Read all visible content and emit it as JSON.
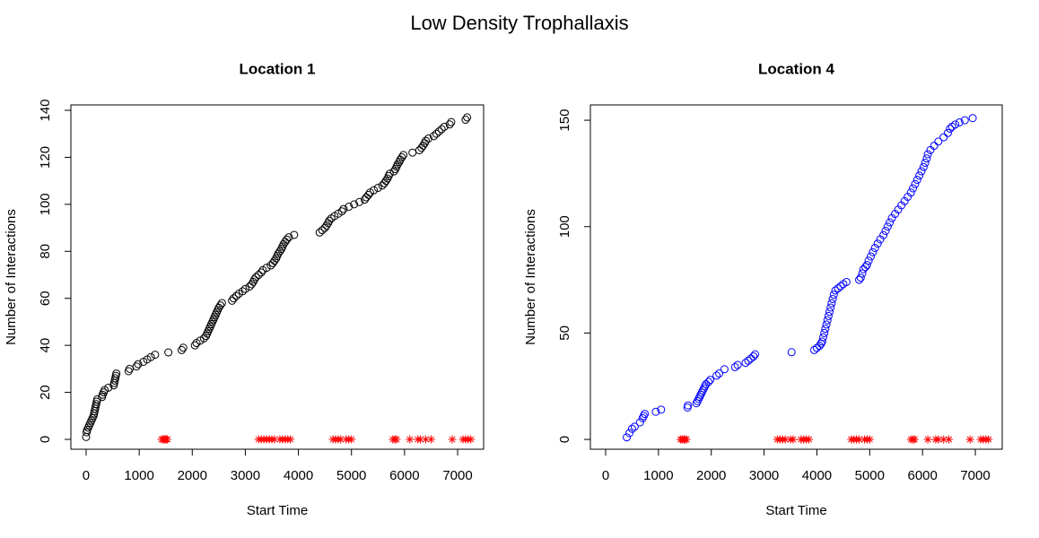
{
  "title": "Low Density Trophallaxis",
  "chart_data": [
    {
      "type": "scatter",
      "title": "Location 1",
      "x_label": "Start Time",
      "y_label": "Number of Interactions",
      "xlim": [
        -287,
        7490
      ],
      "ylim": [
        -4.2,
        142.3
      ],
      "xticks": [
        0,
        1000,
        2000,
        3000,
        4000,
        5000,
        6000,
        7000
      ],
      "yticks": [
        0,
        20,
        40,
        60,
        80,
        100,
        120,
        140
      ],
      "series": [
        {
          "color": "#000000",
          "marker": "circle",
          "x": [
            0,
            10,
            20,
            40,
            60,
            80,
            100,
            120,
            140,
            150,
            160,
            170,
            180,
            190,
            200,
            210,
            300,
            310,
            330,
            350,
            420,
            520,
            530,
            540,
            550,
            560,
            570,
            800,
            820,
            950,
            980,
            1080,
            1150,
            1220,
            1300,
            1550,
            1800,
            1830,
            2050,
            2080,
            2150,
            2220,
            2260,
            2280,
            2300,
            2320,
            2340,
            2360,
            2380,
            2400,
            2420,
            2440,
            2460,
            2480,
            2500,
            2530,
            2560,
            2750,
            2780,
            2830,
            2880,
            2950,
            3000,
            3080,
            3120,
            3150,
            3170,
            3200,
            3250,
            3300,
            3330,
            3400,
            3480,
            3520,
            3550,
            3580,
            3600,
            3620,
            3650,
            3680,
            3700,
            3720,
            3750,
            3780,
            3820,
            3920,
            4400,
            4450,
            4500,
            4530,
            4560,
            4580,
            4620,
            4680,
            4750,
            4820,
            4850,
            4950,
            5050,
            5150,
            5250,
            5280,
            5320,
            5350,
            5420,
            5500,
            5580,
            5620,
            5650,
            5680,
            5700,
            5720,
            5800,
            5830,
            5850,
            5870,
            5900,
            5920,
            5950,
            5980,
            6150,
            6280,
            6320,
            6350,
            6380,
            6400,
            6450,
            6550,
            6600,
            6650,
            6700,
            6750,
            6850,
            6880,
            7150,
            7180
          ],
          "values": [
            1,
            3,
            4,
            5,
            6,
            7,
            8,
            9,
            10,
            11,
            12,
            13,
            14,
            15,
            16,
            17,
            18,
            19,
            20,
            21,
            22,
            23,
            24,
            25,
            26,
            27,
            28,
            29,
            30,
            31,
            32,
            33,
            34,
            35,
            36,
            37,
            38,
            39,
            40,
            41,
            42,
            43,
            44,
            45,
            46,
            47,
            48,
            49,
            50,
            51,
            52,
            53,
            54,
            55,
            56,
            57,
            58,
            59,
            60,
            61,
            62,
            63,
            64,
            65,
            66,
            67,
            68,
            69,
            70,
            71,
            72,
            73,
            74,
            75,
            76,
            77,
            78,
            79,
            80,
            81,
            82,
            83,
            84,
            85,
            86,
            87,
            88,
            89,
            90,
            91,
            92,
            93,
            94,
            95,
            96,
            97,
            98,
            99,
            100,
            101,
            102,
            103,
            104,
            105,
            106,
            107,
            108,
            109,
            110,
            111,
            112,
            113,
            114,
            115,
            116,
            117,
            118,
            119,
            120,
            121,
            122,
            123,
            124,
            125,
            126,
            127,
            128,
            129,
            130,
            131,
            132,
            133,
            134,
            135,
            136,
            137
          ]
        },
        {
          "color": "#ff0000",
          "marker": "star",
          "x": [
            1420,
            1450,
            1470,
            1490,
            1510,
            1530,
            3250,
            3300,
            3350,
            3400,
            3450,
            3500,
            3550,
            3650,
            3700,
            3750,
            3800,
            3850,
            4650,
            4700,
            4750,
            4800,
            4900,
            4950,
            5000,
            5780,
            5820,
            5850,
            6100,
            6250,
            6300,
            6400,
            6500,
            6900,
            7100,
            7150,
            7200,
            7250
          ],
          "values": [
            0,
            0,
            0,
            0,
            0,
            0,
            0,
            0,
            0,
            0,
            0,
            0,
            0,
            0,
            0,
            0,
            0,
            0,
            0,
            0,
            0,
            0,
            0,
            0,
            0,
            0,
            0,
            0,
            0,
            0,
            0,
            0,
            0,
            0,
            0,
            0,
            0,
            0
          ]
        }
      ]
    },
    {
      "type": "scatter",
      "title": "Location 4",
      "x_label": "Start Time",
      "y_label": "Number of Interactions",
      "xlim": [
        -289,
        7509
      ],
      "ylim": [
        -4.6,
        157.2
      ],
      "xticks": [
        0,
        1000,
        2000,
        3000,
        4000,
        5000,
        6000,
        7000
      ],
      "yticks": [
        0,
        50,
        100,
        150
      ],
      "series": [
        {
          "color": "#0000ff",
          "marker": "circle",
          "x": [
            400,
            450,
            500,
            550,
            650,
            700,
            720,
            740,
            950,
            1050,
            1550,
            1560,
            1720,
            1740,
            1760,
            1780,
            1800,
            1820,
            1840,
            1860,
            1880,
            1900,
            1950,
            1980,
            2100,
            2150,
            2250,
            2450,
            2500,
            2650,
            2700,
            2750,
            2800,
            2830,
            3520,
            3950,
            4000,
            4050,
            4080,
            4100,
            4120,
            4140,
            4160,
            4180,
            4200,
            4220,
            4240,
            4260,
            4280,
            4300,
            4320,
            4350,
            4400,
            4450,
            4500,
            4560,
            4800,
            4830,
            4860,
            4880,
            4920,
            4950,
            4980,
            5020,
            5060,
            5100,
            5150,
            5200,
            5260,
            5300,
            5340,
            5380,
            5420,
            5480,
            5540,
            5600,
            5660,
            5720,
            5780,
            5820,
            5860,
            5900,
            5940,
            5980,
            6020,
            6050,
            6080,
            6100,
            6150,
            6220,
            6300,
            6400,
            6480,
            6520,
            6560,
            6620,
            6700,
            6800,
            6950
          ],
          "values": [
            1,
            3,
            5,
            6,
            8,
            10,
            11,
            12,
            13,
            14,
            15,
            16,
            17,
            18,
            19,
            20,
            21,
            22,
            23,
            24,
            25,
            26,
            27,
            28,
            30,
            31,
            33,
            34,
            35,
            36,
            37,
            38,
            39,
            40,
            41,
            42,
            43,
            44,
            45,
            46,
            48,
            50,
            52,
            54,
            56,
            58,
            60,
            62,
            64,
            66,
            68,
            70,
            71,
            72,
            73,
            74,
            75,
            76,
            78,
            80,
            81,
            82,
            84,
            86,
            88,
            90,
            92,
            94,
            96,
            98,
            100,
            102,
            104,
            106,
            108,
            110,
            112,
            114,
            116,
            118,
            120,
            122,
            124,
            126,
            128,
            130,
            132,
            134,
            136,
            138,
            140,
            142,
            144,
            146,
            147,
            148,
            149,
            150,
            151
          ]
        },
        {
          "color": "#ff0000",
          "marker": "star",
          "x": [
            1420,
            1450,
            1480,
            1500,
            1530,
            3250,
            3300,
            3350,
            3400,
            3500,
            3550,
            3700,
            3750,
            3800,
            3850,
            4650,
            4700,
            4750,
            4800,
            4900,
            4950,
            5000,
            5780,
            5820,
            5850,
            6100,
            6250,
            6300,
            6400,
            6500,
            6900,
            7100,
            7150,
            7200,
            7250
          ],
          "values": [
            0,
            0,
            0,
            0,
            0,
            0,
            0,
            0,
            0,
            0,
            0,
            0,
            0,
            0,
            0,
            0,
            0,
            0,
            0,
            0,
            0,
            0,
            0,
            0,
            0,
            0,
            0,
            0,
            0,
            0,
            0,
            0,
            0,
            0,
            0
          ]
        }
      ]
    }
  ]
}
